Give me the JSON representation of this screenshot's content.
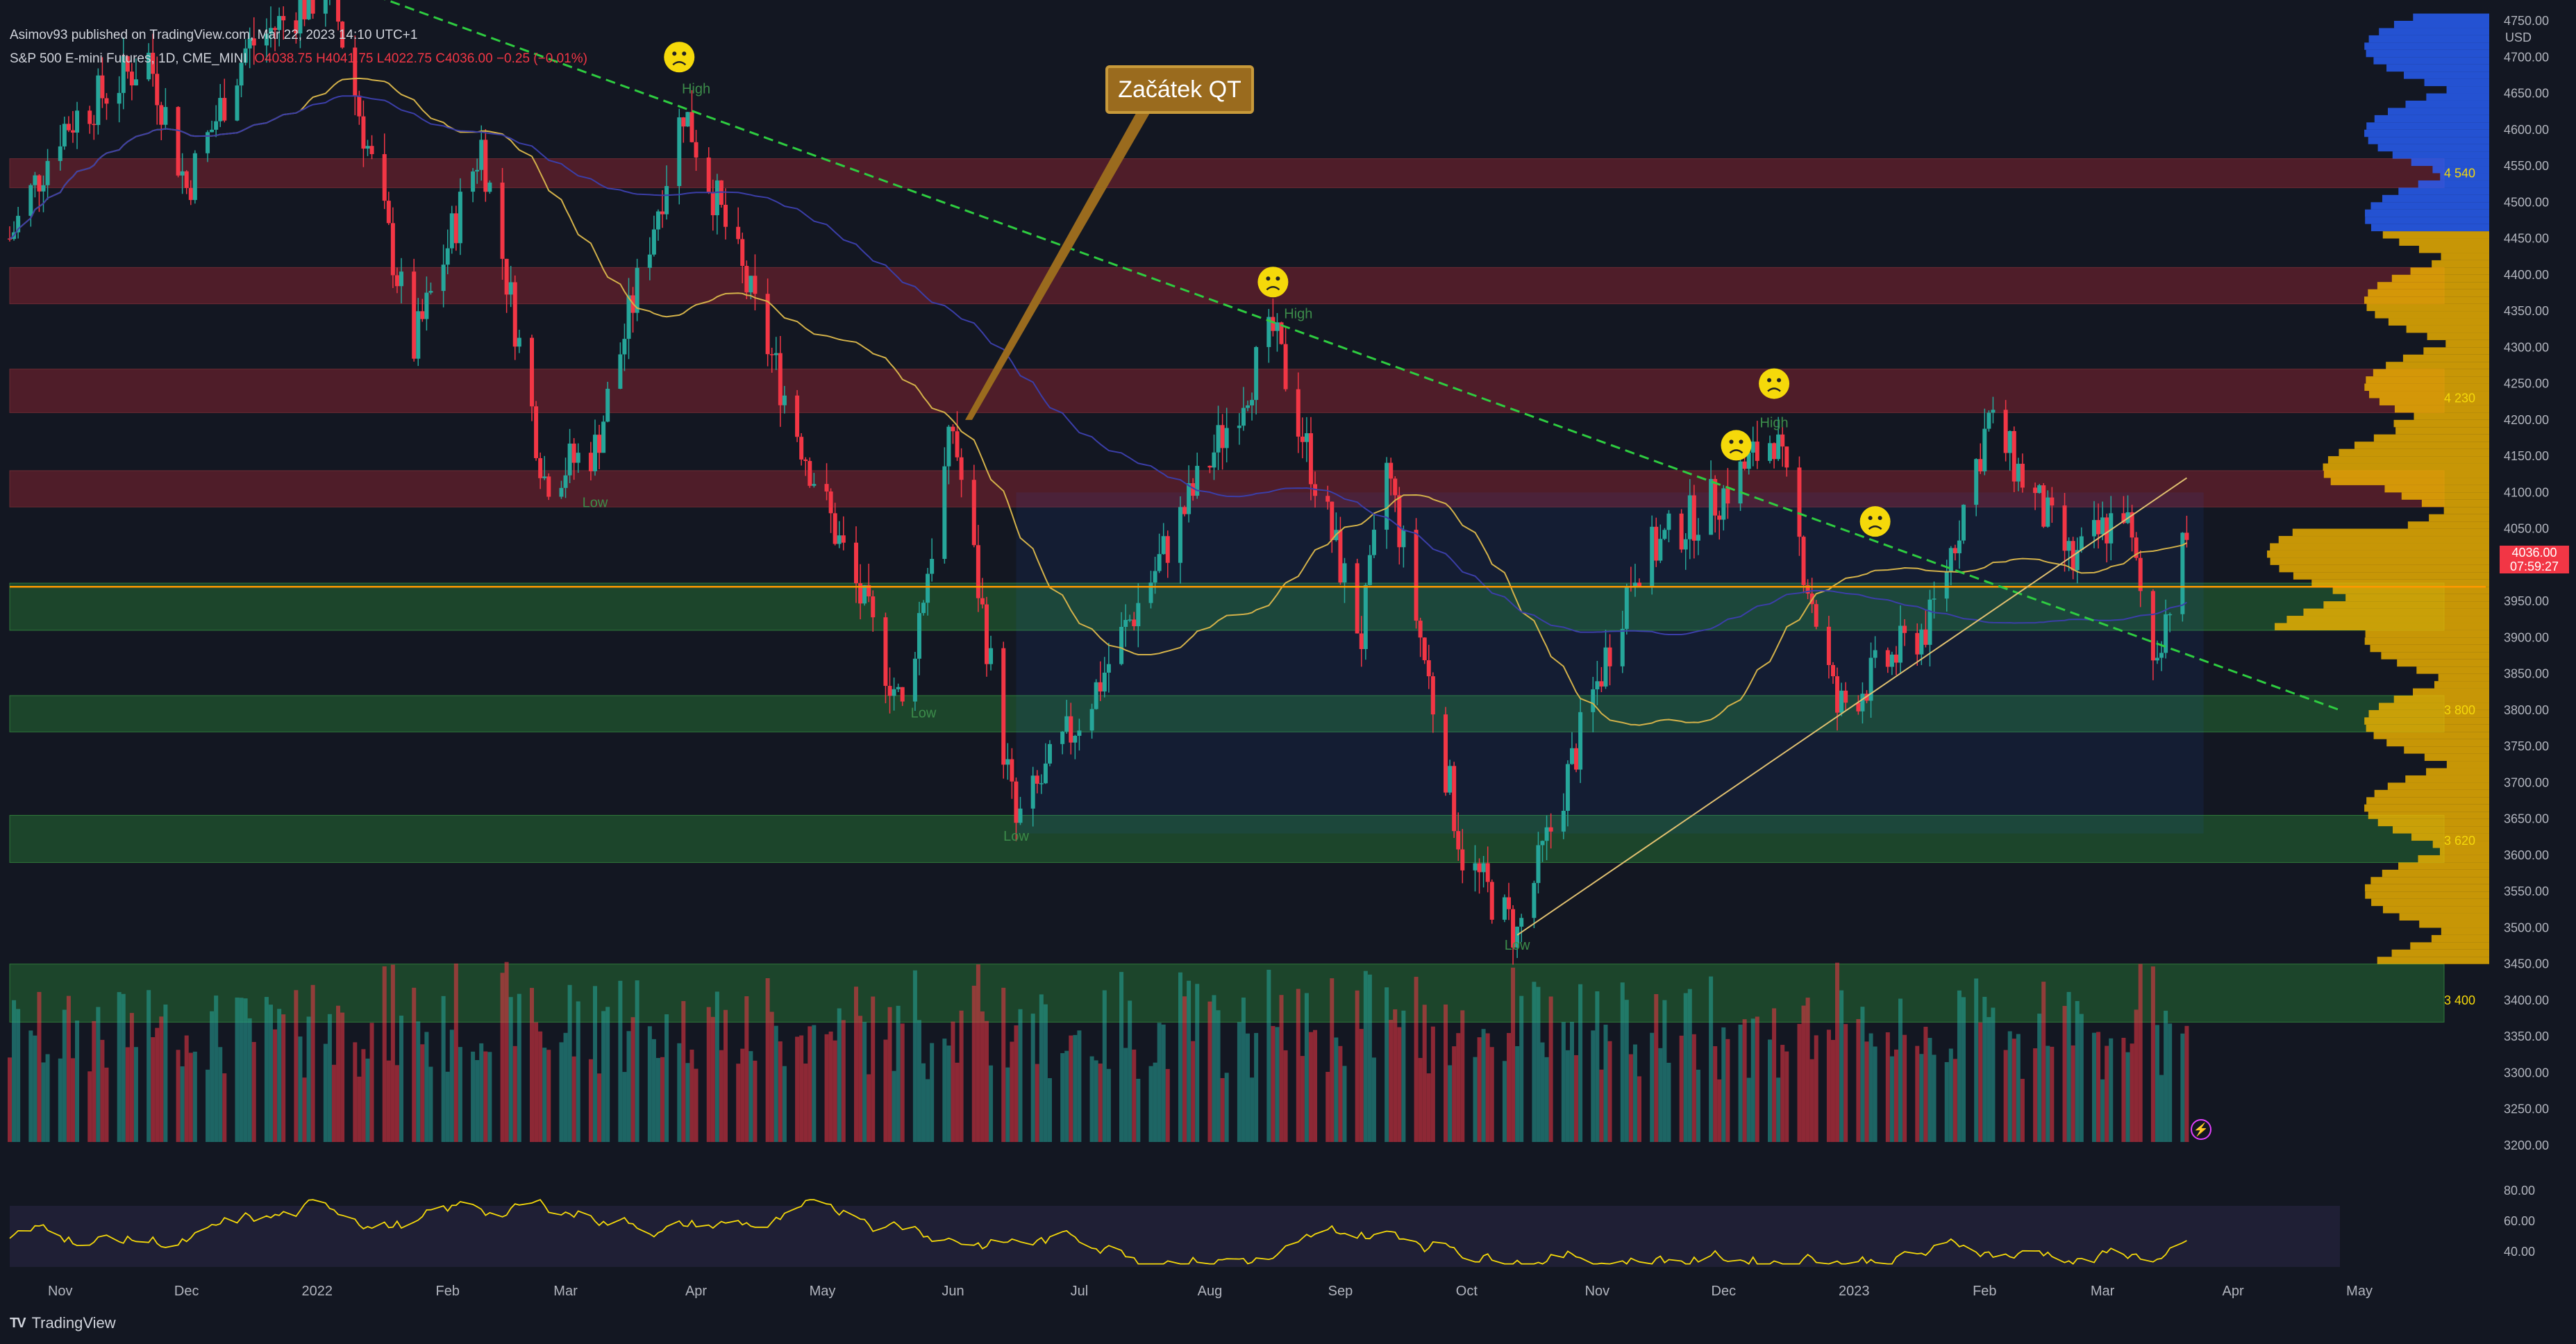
{
  "header": {
    "publisher": "Asimov93 published on TradingView.com, Mar 22, 2023 14:10 UTC+1",
    "symbol": "S&P 500 E-mini Futures, 1D, CME_MINI",
    "ohlc": "O4038.75 H4041.75 L4022.75 C4036.00 −0.25 (−0.01%)"
  },
  "footer": {
    "logo": "TV",
    "brand": "TradingView"
  },
  "price_badge": {
    "price": "4036.00",
    "countdown": "07:59:27"
  },
  "currency": "USD",
  "callout": "Začátek QT",
  "colors": {
    "background": "#131722",
    "up": "#26a69a",
    "down": "#f23645",
    "resistance_zone": "#5a1f2a",
    "support_zone": "#1e4a2c",
    "ma_fast": "#d4b24a",
    "ma_slow": "#3b3ea8",
    "trend_line": "#2ecc40",
    "profile": "#f5b700",
    "callout": "#9a6b1e"
  },
  "chart_data": {
    "type": "candlestick",
    "title": "S&P 500 E-mini Futures, 1D, CME_MINI",
    "y_axis": {
      "min": 3200,
      "max": 4750,
      "ticks": [
        3200,
        3250,
        3300,
        3350,
        3400,
        3450,
        3500,
        3550,
        3600,
        3650,
        3700,
        3750,
        3800,
        3850,
        3900,
        3950,
        4000,
        4050,
        4100,
        4150,
        4200,
        4250,
        4300,
        4350,
        4400,
        4450,
        4500,
        4550,
        4600,
        4650,
        4700,
        4750
      ]
    },
    "x_axis": {
      "labels": [
        "Nov",
        "Dec",
        "2022",
        "Feb",
        "Mar",
        "Apr",
        "May",
        "Jun",
        "Jul",
        "Aug",
        "Sep",
        "Oct",
        "Nov",
        "Dec",
        "2023",
        "Feb",
        "Mar",
        "Apr",
        "May"
      ]
    },
    "last_price": 4036.0,
    "horizontal_line": 3970,
    "price_path": [
      [
        "2021-10-20",
        4450
      ],
      [
        "2021-11-01",
        4600
      ],
      [
        "2021-11-22",
        4700
      ],
      [
        "2021-12-01",
        4520
      ],
      [
        "2021-12-15",
        4710
      ],
      [
        "2022-01-04",
        4800
      ],
      [
        "2022-01-24",
        4300
      ],
      [
        "2022-02-09",
        4580
      ],
      [
        "2022-02-24",
        4120
      ],
      [
        "2022-03-08",
        4160
      ],
      [
        "2022-03-29",
        4630
      ],
      [
        "2022-04-26",
        4170
      ],
      [
        "2022-05-20",
        3800
      ],
      [
        "2022-06-01",
        4190
      ],
      [
        "2022-06-16",
        3640
      ],
      [
        "2022-07-05",
        3830
      ],
      [
        "2022-08-16",
        4320
      ],
      [
        "2022-09-06",
        3900
      ],
      [
        "2022-09-12",
        4140
      ],
      [
        "2022-09-30",
        3600
      ],
      [
        "2022-10-13",
        3490
      ],
      [
        "2022-11-10",
        4000
      ],
      [
        "2022-12-01",
        4100
      ],
      [
        "2022-12-13",
        4180
      ],
      [
        "2022-12-28",
        3800
      ],
      [
        "2023-01-19",
        3920
      ],
      [
        "2023-02-02",
        4200
      ],
      [
        "2023-02-22",
        4000
      ],
      [
        "2023-03-06",
        4080
      ],
      [
        "2023-03-13",
        3870
      ],
      [
        "2023-03-21",
        4036
      ]
    ],
    "resistance_zones": [
      [
        4520,
        4560
      ],
      [
        4360,
        4410
      ],
      [
        4210,
        4270
      ],
      [
        4080,
        4130
      ]
    ],
    "support_zones": [
      [
        3910,
        3975
      ],
      [
        3770,
        3820
      ],
      [
        3590,
        3655
      ],
      [
        3370,
        3450
      ]
    ],
    "annotations": [
      "High",
      "High",
      "High",
      "Low",
      "Low",
      "Low",
      "Low"
    ],
    "profile_labels": [
      "4 540",
      "4 230",
      "3 800",
      "3 620",
      "3 400"
    ],
    "rsi": {
      "ticks": [
        "80.00",
        "60.00",
        "40.00"
      ],
      "min": 30,
      "max": 80,
      "last": 55
    }
  }
}
